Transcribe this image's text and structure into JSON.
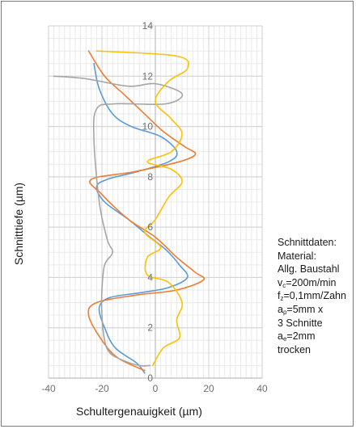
{
  "chart_data": {
    "type": "line",
    "title": "",
    "xlabel": "Schultergenauigkeit (µm)",
    "ylabel": "Schnitttiefe (µm)",
    "xlim": [
      -40,
      40
    ],
    "ylim": [
      0,
      14
    ],
    "xticks": [
      "-40",
      "-20",
      "0",
      "20",
      "40"
    ],
    "yticks": [
      "0",
      "2",
      "4",
      "6",
      "8",
      "10",
      "12",
      "14"
    ],
    "grid": true,
    "colors": [
      "#5b9bd5",
      "#ed7d31",
      "#a5a5a5",
      "#ffc000"
    ],
    "series": [
      {
        "points": [
          [
            -23,
            12.5
          ],
          [
            -21,
            11.5
          ],
          [
            -16,
            10.5
          ],
          [
            -9,
            10.0
          ],
          [
            2,
            9.6
          ],
          [
            8,
            9.0
          ],
          [
            5,
            8.6
          ],
          [
            -7,
            8.2
          ],
          [
            -18,
            7.9
          ],
          [
            -22,
            7.6
          ],
          [
            -19,
            7.0
          ],
          [
            -10,
            6.3
          ],
          [
            -2,
            5.6
          ],
          [
            4,
            5.1
          ],
          [
            9,
            4.5
          ],
          [
            12,
            4.0
          ],
          [
            5,
            3.6
          ],
          [
            -5,
            3.4
          ],
          [
            -17,
            3.2
          ],
          [
            -21,
            2.8
          ],
          [
            -19,
            2.0
          ],
          [
            -15,
            1.2
          ],
          [
            -7,
            0.6
          ],
          [
            -4,
            0.2
          ]
        ]
      },
      {
        "points": [
          [
            -25,
            13.0
          ],
          [
            -19,
            12.0
          ],
          [
            -12,
            11.3
          ],
          [
            -5,
            10.6
          ],
          [
            3,
            9.8
          ],
          [
            11,
            9.2
          ],
          [
            15,
            8.9
          ],
          [
            9,
            8.6
          ],
          [
            -8,
            8.2
          ],
          [
            -24,
            7.9
          ],
          [
            -20,
            7.3
          ],
          [
            -10,
            6.3
          ],
          [
            0,
            5.6
          ],
          [
            8,
            4.8
          ],
          [
            15,
            4.2
          ],
          [
            18,
            3.9
          ],
          [
            8,
            3.5
          ],
          [
            -7,
            3.3
          ],
          [
            -22,
            3.0
          ],
          [
            -25,
            2.5
          ],
          [
            -20,
            1.5
          ],
          [
            -14,
            0.8
          ],
          [
            -4,
            0.3
          ]
        ]
      },
      {
        "points": [
          [
            -38,
            12.0
          ],
          [
            -26,
            11.9
          ],
          [
            -10,
            11.6
          ],
          [
            0,
            11.7
          ],
          [
            10,
            11.3
          ],
          [
            4,
            10.9
          ],
          [
            -15,
            10.9
          ],
          [
            -22,
            10.7
          ],
          [
            -23,
            9.5
          ],
          [
            -21,
            7.0
          ],
          [
            -18,
            5.5
          ],
          [
            -16,
            5.0
          ],
          [
            -19,
            4.5
          ],
          [
            -20,
            3.5
          ],
          [
            -20,
            2.5
          ],
          [
            -19,
            1.5
          ],
          [
            -17,
            1.0
          ],
          [
            -12,
            0.7
          ],
          [
            -6,
            0.5
          ],
          [
            -2,
            0.5
          ]
        ]
      },
      {
        "points": [
          [
            -22,
            13.0
          ],
          [
            8,
            12.8
          ],
          [
            12,
            12.3
          ],
          [
            5,
            11.8
          ],
          [
            0,
            11.0
          ],
          [
            6,
            10.3
          ],
          [
            10,
            9.7
          ],
          [
            6,
            9.0
          ],
          [
            -3,
            8.6
          ],
          [
            6,
            8.3
          ],
          [
            10,
            7.8
          ],
          [
            5,
            7.2
          ],
          [
            0,
            6.3
          ],
          [
            -4,
            5.8
          ],
          [
            2,
            5.2
          ],
          [
            -3,
            4.8
          ],
          [
            -3,
            4.1
          ],
          [
            5,
            3.8
          ],
          [
            10,
            3.0
          ],
          [
            8,
            2.3
          ],
          [
            9,
            1.6
          ],
          [
            3,
            1.2
          ],
          [
            -1,
            0.5
          ]
        ]
      }
    ]
  },
  "notes": {
    "heading": "Schnittdaten:",
    "material_label": "Material:",
    "material_value": "Allg. Baustahl",
    "vc": {
      "base": "v",
      "sub": "c",
      "value": "=200m/min"
    },
    "fz": {
      "base": "f",
      "sub": "z",
      "value": "=0,1mm/Zahn"
    },
    "ap": {
      "base": "a",
      "sub": "p",
      "value": "=5mm x"
    },
    "cuts": "3 Schnitte",
    "ae": {
      "base": "a",
      "sub": "e",
      "value": "=2mm"
    },
    "coolant": "trocken"
  }
}
